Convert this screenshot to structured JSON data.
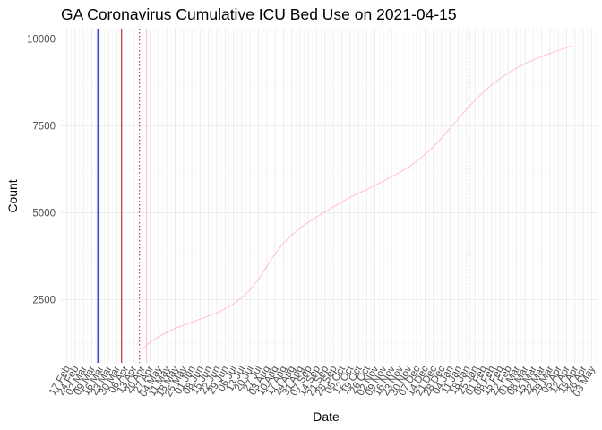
{
  "chart_data": {
    "type": "line",
    "title": "GA Coronavirus Cumulative ICU Bed Use on 2021-04-15",
    "xlabel": "Date",
    "ylabel": "Count",
    "x_type": "date",
    "xlim": [
      "2020-02-12",
      "2021-05-08"
    ],
    "ylim": [
      680,
      10300
    ],
    "y_ticks": [
      2500,
      5000,
      7500,
      10000
    ],
    "x_tick_labels": [
      "17 Feb",
      "24 Feb",
      "02 Mar",
      "09 Mar",
      "16 Mar",
      "23 Mar",
      "30 Mar",
      "06 Apr",
      "13 Apr",
      "20 Apr",
      "27 Apr",
      "04 May",
      "11 May",
      "18 May",
      "25 May",
      "01 Jun",
      "08 Jun",
      "15 Jun",
      "22 Jun",
      "29 Jun",
      "06 Jul",
      "13 Jul",
      "20 Jul",
      "27 Jul",
      "03 Aug",
      "10 Aug",
      "17 Aug",
      "24 Aug",
      "31 Aug",
      "07 Sep",
      "14 Sep",
      "21 Sep",
      "28 Sep",
      "05 Oct",
      "12 Oct",
      "19 Oct",
      "26 Oct",
      "02 Nov",
      "09 Nov",
      "16 Nov",
      "23 Nov",
      "30 Nov",
      "07 Dec",
      "14 Dec",
      "21 Dec",
      "28 Dec",
      "04 Jan",
      "11 Jan",
      "18 Jan",
      "25 Jan",
      "01 Feb",
      "08 Feb",
      "15 Feb",
      "22 Feb",
      "01 Mar",
      "08 Mar",
      "15 Mar",
      "22 Mar",
      "29 Mar",
      "05 Apr",
      "12 Apr",
      "19 Apr",
      "26 Apr",
      "03 May"
    ],
    "x_tick_dates": [
      "2020-02-17",
      "2020-02-24",
      "2020-03-02",
      "2020-03-09",
      "2020-03-16",
      "2020-03-23",
      "2020-03-30",
      "2020-04-06",
      "2020-04-13",
      "2020-04-20",
      "2020-04-27",
      "2020-05-04",
      "2020-05-11",
      "2020-05-18",
      "2020-05-25",
      "2020-06-01",
      "2020-06-08",
      "2020-06-15",
      "2020-06-22",
      "2020-06-29",
      "2020-07-06",
      "2020-07-13",
      "2020-07-20",
      "2020-07-27",
      "2020-08-03",
      "2020-08-10",
      "2020-08-17",
      "2020-08-24",
      "2020-08-31",
      "2020-09-07",
      "2020-09-14",
      "2020-09-21",
      "2020-09-28",
      "2020-10-05",
      "2020-10-12",
      "2020-10-19",
      "2020-10-26",
      "2020-11-02",
      "2020-11-09",
      "2020-11-16",
      "2020-11-23",
      "2020-11-30",
      "2020-12-07",
      "2020-12-14",
      "2020-12-21",
      "2020-12-28",
      "2021-01-04",
      "2021-01-11",
      "2021-01-18",
      "2021-01-25",
      "2021-02-01",
      "2021-02-08",
      "2021-02-15",
      "2021-02-22",
      "2021-03-01",
      "2021-03-08",
      "2021-03-15",
      "2021-03-22",
      "2021-03-29",
      "2021-04-05",
      "2021-04-12",
      "2021-04-19",
      "2021-04-26",
      "2021-05-03"
    ],
    "grid": true,
    "series": [
      {
        "color": "#ffc0cb",
        "points": [
          {
            "x": "2020-04-20",
            "y": 1050
          },
          {
            "x": "2020-04-27",
            "y": 1280
          },
          {
            "x": "2020-05-04",
            "y": 1430
          },
          {
            "x": "2020-05-11",
            "y": 1560
          },
          {
            "x": "2020-05-18",
            "y": 1670
          },
          {
            "x": "2020-05-25",
            "y": 1760
          },
          {
            "x": "2020-06-01",
            "y": 1850
          },
          {
            "x": "2020-06-08",
            "y": 1940
          },
          {
            "x": "2020-06-15",
            "y": 2030
          },
          {
            "x": "2020-06-22",
            "y": 2120
          },
          {
            "x": "2020-06-29",
            "y": 2240
          },
          {
            "x": "2020-07-06",
            "y": 2380
          },
          {
            "x": "2020-07-13",
            "y": 2560
          },
          {
            "x": "2020-07-20",
            "y": 2780
          },
          {
            "x": "2020-07-27",
            "y": 3080
          },
          {
            "x": "2020-08-03",
            "y": 3450
          },
          {
            "x": "2020-08-10",
            "y": 3820
          },
          {
            "x": "2020-08-17",
            "y": 4120
          },
          {
            "x": "2020-08-24",
            "y": 4360
          },
          {
            "x": "2020-08-31",
            "y": 4560
          },
          {
            "x": "2020-09-07",
            "y": 4730
          },
          {
            "x": "2020-09-14",
            "y": 4880
          },
          {
            "x": "2020-09-21",
            "y": 5030
          },
          {
            "x": "2020-09-28",
            "y": 5170
          },
          {
            "x": "2020-10-05",
            "y": 5310
          },
          {
            "x": "2020-10-12",
            "y": 5440
          },
          {
            "x": "2020-10-19",
            "y": 5560
          },
          {
            "x": "2020-10-26",
            "y": 5670
          },
          {
            "x": "2020-11-02",
            "y": 5790
          },
          {
            "x": "2020-11-09",
            "y": 5910
          },
          {
            "x": "2020-11-16",
            "y": 6040
          },
          {
            "x": "2020-11-23",
            "y": 6170
          },
          {
            "x": "2020-11-30",
            "y": 6310
          },
          {
            "x": "2020-12-07",
            "y": 6480
          },
          {
            "x": "2020-12-14",
            "y": 6680
          },
          {
            "x": "2020-12-21",
            "y": 6900
          },
          {
            "x": "2020-12-28",
            "y": 7150
          },
          {
            "x": "2021-01-04",
            "y": 7430
          },
          {
            "x": "2021-01-11",
            "y": 7710
          },
          {
            "x": "2021-01-18",
            "y": 7980
          },
          {
            "x": "2021-01-25",
            "y": 8240
          },
          {
            "x": "2021-02-01",
            "y": 8470
          },
          {
            "x": "2021-02-08",
            "y": 8680
          },
          {
            "x": "2021-02-15",
            "y": 8860
          },
          {
            "x": "2021-02-22",
            "y": 9020
          },
          {
            "x": "2021-03-01",
            "y": 9170
          },
          {
            "x": "2021-03-08",
            "y": 9290
          },
          {
            "x": "2021-03-15",
            "y": 9400
          },
          {
            "x": "2021-03-22",
            "y": 9500
          },
          {
            "x": "2021-03-29",
            "y": 9590
          },
          {
            "x": "2021-04-05",
            "y": 9670
          },
          {
            "x": "2021-04-12",
            "y": 9750
          },
          {
            "x": "2021-04-15",
            "y": 9800
          }
        ]
      }
    ],
    "reference_lines": [
      {
        "x": "2020-03-14",
        "color": "#0000cd",
        "style": "solid"
      },
      {
        "x": "2020-04-03",
        "color": "#b22222",
        "style": "solid"
      },
      {
        "x": "2020-04-18",
        "color": "#b22222",
        "style": "dotted"
      },
      {
        "x": "2020-04-24",
        "color": "#ffc0cb",
        "style": "solid"
      },
      {
        "x": "2021-01-20",
        "color": "#00008b",
        "style": "dotted"
      }
    ]
  }
}
